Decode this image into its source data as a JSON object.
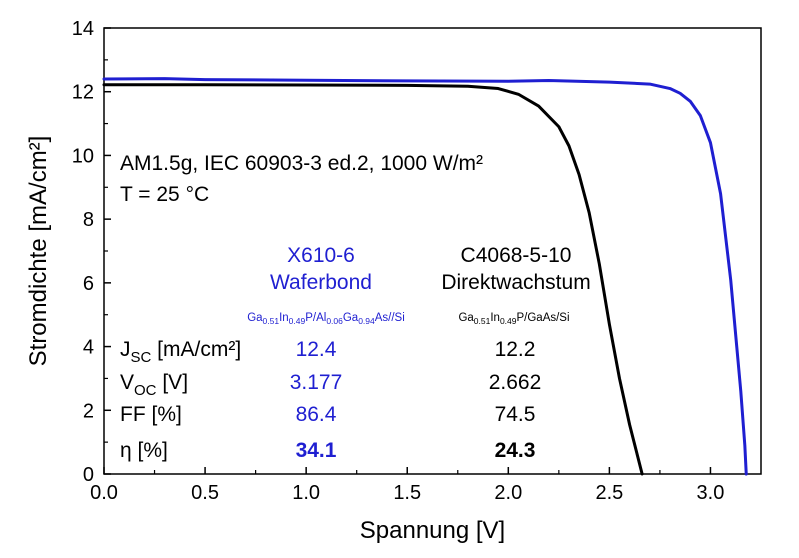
{
  "chart_data": {
    "type": "line",
    "xlabel": "Spannung [V]",
    "ylabel": "Stromdichte [mA/cm²]",
    "xlim": [
      0.0,
      3.25
    ],
    "ylim": [
      0,
      14
    ],
    "x_ticks": [
      "0.0",
      "0.5",
      "1.0",
      "1.5",
      "2.0",
      "2.5",
      "3.0"
    ],
    "y_ticks": [
      "0",
      "2",
      "4",
      "6",
      "8",
      "10",
      "12",
      "14"
    ],
    "grid": false,
    "annotations": {
      "line1": "AM1.5g, IEC 60903-3 ed.2, 1000 W/m²",
      "line2": "T = 25 °C"
    },
    "table": {
      "col1": {
        "line1": "X610-6",
        "line2": "Waferbond",
        "structure": {
          "p1": "Ga",
          "s1": "0.51",
          "p2": "In",
          "s2": "0.49",
          "p3": "P/Al",
          "s3": "0.06",
          "p4": "Ga",
          "s4": "0.94",
          "p5": "As//Si"
        },
        "color": "#1f1fd1"
      },
      "col2": {
        "line1": "C4068-5-10",
        "line2": "Direktwachstum",
        "structure": {
          "p1": "Ga",
          "s1": "0.51",
          "p2": "In",
          "s2": "0.49",
          "p3": "P/GaAs/Si"
        },
        "color": "#000000"
      },
      "rows": [
        {
          "main": "J",
          "sub": "SC",
          "rest": " [mA/cm²]",
          "v1": "12.4",
          "v2": "12.2",
          "bold": false
        },
        {
          "main": "V",
          "sub": "OC",
          "rest": " [V]",
          "v1": "3.177",
          "v2": "2.662",
          "bold": false
        },
        {
          "main": "FF [%]",
          "sub": "",
          "rest": "",
          "v1": "86.4",
          "v2": "74.5",
          "bold": false
        },
        {
          "main": "η [%]",
          "sub": "",
          "rest": "",
          "v1": "34.1",
          "v2": "24.3",
          "bold": true
        }
      ]
    },
    "series": [
      {
        "color": "#1f1fd1",
        "points": [
          [
            0.0,
            12.4
          ],
          [
            0.3,
            12.41
          ],
          [
            0.5,
            12.38
          ],
          [
            1.0,
            12.36
          ],
          [
            1.5,
            12.34
          ],
          [
            2.0,
            12.33
          ],
          [
            2.2,
            12.35
          ],
          [
            2.5,
            12.3
          ],
          [
            2.7,
            12.24
          ],
          [
            2.8,
            12.1
          ],
          [
            2.85,
            11.95
          ],
          [
            2.9,
            11.7
          ],
          [
            2.95,
            11.25
          ],
          [
            3.0,
            10.4
          ],
          [
            3.05,
            8.8
          ],
          [
            3.1,
            6.1
          ],
          [
            3.13,
            4.0
          ],
          [
            3.15,
            2.6
          ],
          [
            3.17,
            0.9
          ],
          [
            3.177,
            0.0
          ]
        ]
      },
      {
        "color": "#000000",
        "points": [
          [
            0.0,
            12.22
          ],
          [
            0.5,
            12.22
          ],
          [
            1.0,
            12.21
          ],
          [
            1.5,
            12.2
          ],
          [
            1.8,
            12.17
          ],
          [
            1.95,
            12.1
          ],
          [
            2.05,
            11.92
          ],
          [
            2.15,
            11.55
          ],
          [
            2.25,
            10.9
          ],
          [
            2.3,
            10.3
          ],
          [
            2.35,
            9.4
          ],
          [
            2.4,
            8.2
          ],
          [
            2.45,
            6.6
          ],
          [
            2.5,
            4.7
          ],
          [
            2.55,
            3.0
          ],
          [
            2.6,
            1.55
          ],
          [
            2.64,
            0.55
          ],
          [
            2.662,
            0.0
          ]
        ]
      }
    ]
  }
}
